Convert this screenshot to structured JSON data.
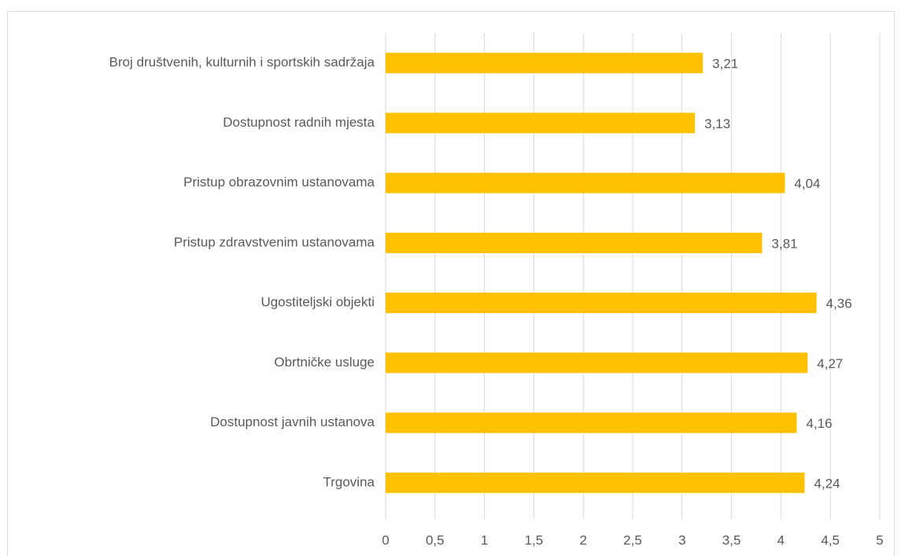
{
  "chart_data": {
    "type": "bar",
    "orientation": "horizontal",
    "categories": [
      "Broj društvenih, kulturnih i sportskih sadržaja",
      "Dostupnost radnih mjesta",
      "Pristup obrazovnim ustanovama",
      "Pristup zdravstvenim ustanovama",
      "Ugostiteljski objekti",
      "Obrtničke usluge",
      "Dostupnost javnih ustanova",
      "Trgovina"
    ],
    "values": [
      3.21,
      3.13,
      4.04,
      3.81,
      4.36,
      4.27,
      4.16,
      4.24
    ],
    "value_labels": [
      "3,21",
      "3,13",
      "4,04",
      "3,81",
      "4,36",
      "4,27",
      "4,16",
      "4,24"
    ],
    "color": "#ffc000",
    "xlim": [
      0,
      5
    ],
    "xticks": [
      0,
      {
        "value": 0.5,
        "label": "0,5"
      },
      1,
      {
        "value": 1.5,
        "label": "1,5"
      },
      2,
      {
        "value": 2.5,
        "label": "2,5"
      },
      3,
      {
        "value": 3.5,
        "label": "3,5"
      },
      4,
      {
        "value": 4.5,
        "label": "4,5"
      },
      5
    ],
    "grid": true
  }
}
